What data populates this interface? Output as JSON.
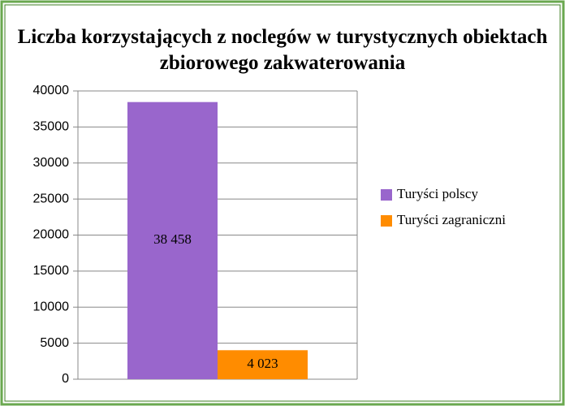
{
  "chart_data": {
    "type": "bar",
    "title": "Liczba korzystających z noclegów w turystycznych obiektach zbiorowego zakwaterowania",
    "categories": [
      null
    ],
    "series": [
      {
        "name": "Turyści polscy",
        "color": "#9966cc",
        "values": [
          38458
        ],
        "value_labels": [
          "38 458"
        ]
      },
      {
        "name": "Turyści zagraniczni",
        "color": "#ff8c00",
        "values": [
          4023
        ],
        "value_labels": [
          "4 023"
        ]
      }
    ],
    "ylim": [
      0,
      40000
    ],
    "yticks": [
      0,
      5000,
      10000,
      15000,
      20000,
      25000,
      30000,
      35000,
      40000
    ],
    "grid": true,
    "legend": "right"
  }
}
